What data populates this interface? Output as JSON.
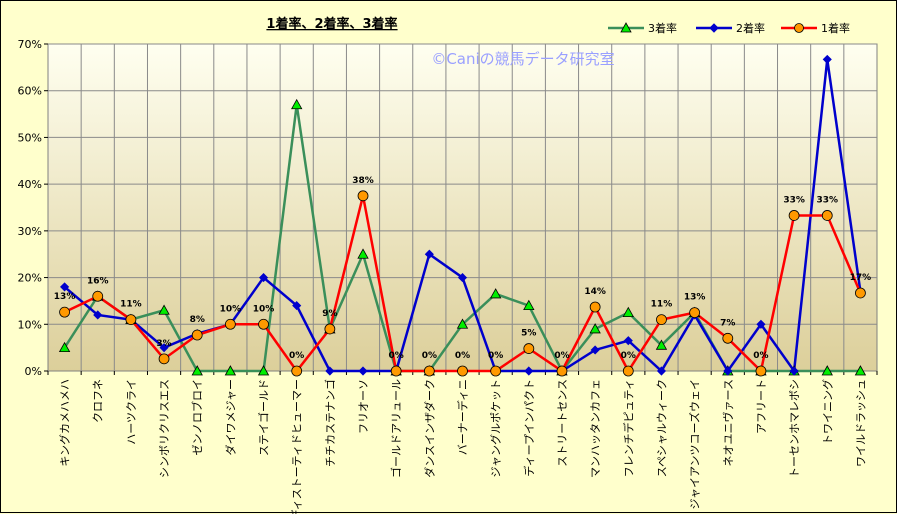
{
  "chart_data": {
    "type": "line",
    "title": "1着率、2着率、3着率",
    "watermark": "©Caniの競馬データ研究室",
    "ylim": [
      0,
      70
    ],
    "yticks": [
      0,
      10,
      20,
      30,
      40,
      50,
      60,
      70
    ],
    "ytick_labels": [
      "0%",
      "10%",
      "20%",
      "30%",
      "40%",
      "50%",
      "60%",
      "70%"
    ],
    "grid": true,
    "legend": "top-right",
    "categories": [
      "キングカメハメハ",
      "クロフネ",
      "ハーツクライ",
      "シンボリクリスエス",
      "ゼンノロブロイ",
      "ダイワメジャー",
      "ステイゴールド",
      "ディストーティドヒューマー",
      "チチカステナンゴ",
      "フリオーソ",
      "ゴールドアリュール",
      "ダンスインザダーク",
      "バーナーディニ",
      "ジャングルポケット",
      "ディープインパクト",
      "ストリートセンス",
      "マンハッタンカフェ",
      "フレンチデピュティ",
      "スペシャルウィーク",
      "ジャイアンツコーズウェイ",
      "ネオユニヴァース",
      "アフリート",
      "トーセンホマレボシ",
      "トワイニング",
      "ワイルドラッシュ"
    ],
    "series": [
      {
        "name": "3着率",
        "color": "#3a8f5a",
        "marker": "triangle",
        "marker_fill": "#00ee00",
        "values": [
          5,
          16,
          11,
          13,
          0,
          0,
          0,
          57,
          9,
          25,
          0,
          0,
          10,
          16.5,
          14,
          0,
          9,
          12.5,
          5.5,
          12.5,
          0,
          0,
          0,
          0,
          0
        ]
      },
      {
        "name": "2着率",
        "color": "#0000cc",
        "marker": "diamond",
        "marker_fill": "#0000cc",
        "values": [
          18,
          12,
          11,
          5,
          8,
          10,
          20,
          14,
          0,
          0,
          0,
          25,
          20,
          0,
          0,
          0,
          4.5,
          6.5,
          0,
          12,
          0,
          10,
          0,
          66.7,
          17
        ]
      },
      {
        "name": "1着率",
        "color": "#ff0000",
        "marker": "circle",
        "marker_fill": "#ff9900",
        "values": [
          12.6,
          16,
          11,
          2.6,
          7.7,
          10,
          10,
          0,
          9,
          37.5,
          0,
          0,
          0,
          0,
          4.8,
          0,
          13.7,
          0,
          11,
          12.5,
          7,
          0,
          33.3,
          33.3,
          16.7
        ],
        "labels": [
          "13%",
          "16%",
          "11%",
          "3%",
          "8%",
          "10%",
          "10%",
          "0%",
          "9%",
          "38%",
          "0%",
          "0%",
          "0%",
          "0%",
          "5%",
          "0%",
          "14%",
          "0%",
          "11%",
          "13%",
          "7%",
          "0%",
          "33%",
          "33%",
          "17%"
        ]
      }
    ]
  }
}
